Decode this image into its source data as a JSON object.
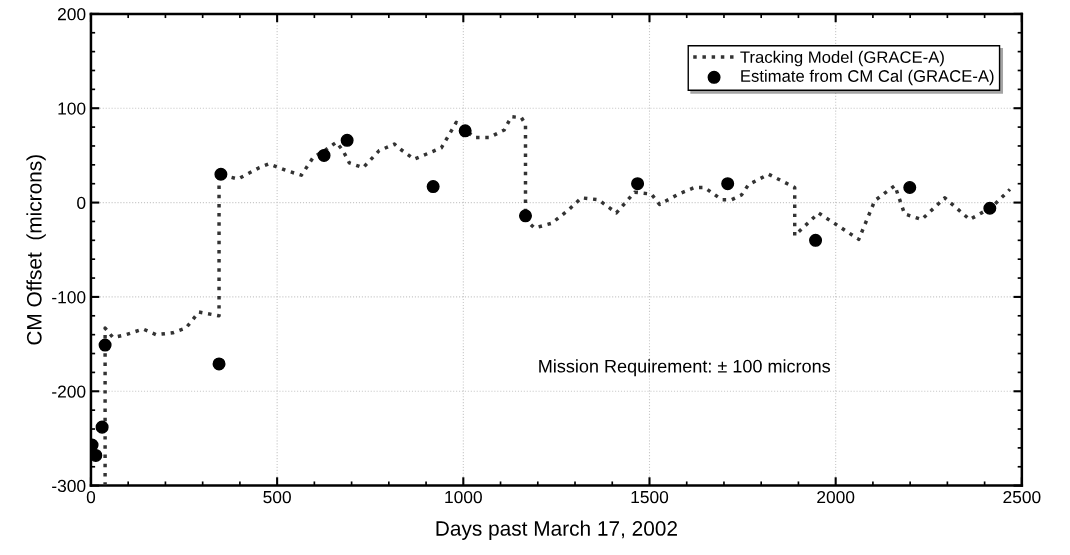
{
  "chart_data": {
    "type": "line",
    "xlabel": "Days past March 17, 2002",
    "ylabel": "CM Offset  (microns)",
    "xlim": [
      0,
      2500
    ],
    "ylim": [
      -300,
      200
    ],
    "xticks": [
      0,
      500,
      1000,
      1500,
      2000,
      2500
    ],
    "yticks": [
      -300,
      -200,
      -100,
      0,
      100,
      200
    ],
    "grid": true,
    "legend": "top right",
    "annotations": [
      "Mission Requirement: ± 100 microns"
    ],
    "series": [
      {
        "name": "Tracking Model (GRACE-A)",
        "color": "#333333",
        "line_style": "dotted",
        "marker": "none",
        "x": [
          38,
          38,
          59,
          94,
          140,
          175,
          220,
          255,
          290,
          344,
          344,
          395,
          452,
          478,
          524,
          565,
          597,
          631,
          659,
          677,
          694,
          731,
          774,
          815,
          833,
          868,
          941,
          981,
          1030,
          1070,
          1110,
          1129,
          1156,
          1167,
          1167,
          1191,
          1237,
          1282,
          1317,
          1363,
          1411,
          1460,
          1505,
          1527,
          1578,
          1621,
          1648,
          1694,
          1720,
          1747,
          1766,
          1820,
          1890,
          1890,
          1954,
          2062,
          2105,
          2159,
          2185,
          2231,
          2293,
          2360,
          2419,
          2468
        ],
        "values": [
          -300,
          -133,
          -143,
          -140,
          -134,
          -140,
          -138,
          -133,
          -116,
          -120,
          30,
          25,
          37,
          41,
          34,
          29,
          48,
          56,
          64,
          55,
          42,
          37,
          55,
          62,
          56,
          46,
          58,
          85,
          69,
          69,
          77,
          91,
          90,
          83,
          -18,
          -27,
          -22,
          -8,
          5,
          3,
          -11,
          11,
          9,
          -2,
          9,
          16,
          16,
          3,
          3,
          8,
          19,
          30,
          16,
          -35,
          -11,
          -39,
          2,
          18,
          -12,
          -18,
          5,
          -18,
          -5,
          14
        ]
      },
      {
        "name": "Estimate from CM Cal (GRACE-A)",
        "type": "scatter",
        "color": "#000000",
        "marker": "circle",
        "x": [
          3,
          13,
          30,
          38,
          349,
          344,
          626,
          688,
          919,
          1005,
          1167,
          1468,
          1710,
          1946,
          2199,
          2414
        ],
        "values": [
          -257,
          -268,
          -238,
          -151,
          30,
          -171,
          50,
          66,
          17,
          76,
          -14,
          20,
          20,
          -40,
          16,
          -6
        ]
      }
    ]
  }
}
